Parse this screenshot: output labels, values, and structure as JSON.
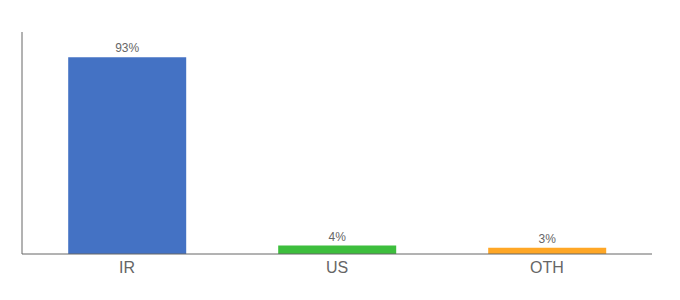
{
  "chart_data": {
    "type": "bar",
    "categories": [
      "IR",
      "US",
      "OTH"
    ],
    "values": [
      93,
      4,
      3
    ],
    "value_labels": [
      "93%",
      "4%",
      "3%"
    ],
    "colors": [
      "#4472C4",
      "#3DBE3D",
      "#FFA726"
    ],
    "ylim": [
      0,
      105
    ],
    "data_labels": true,
    "tick_labels": "x"
  }
}
